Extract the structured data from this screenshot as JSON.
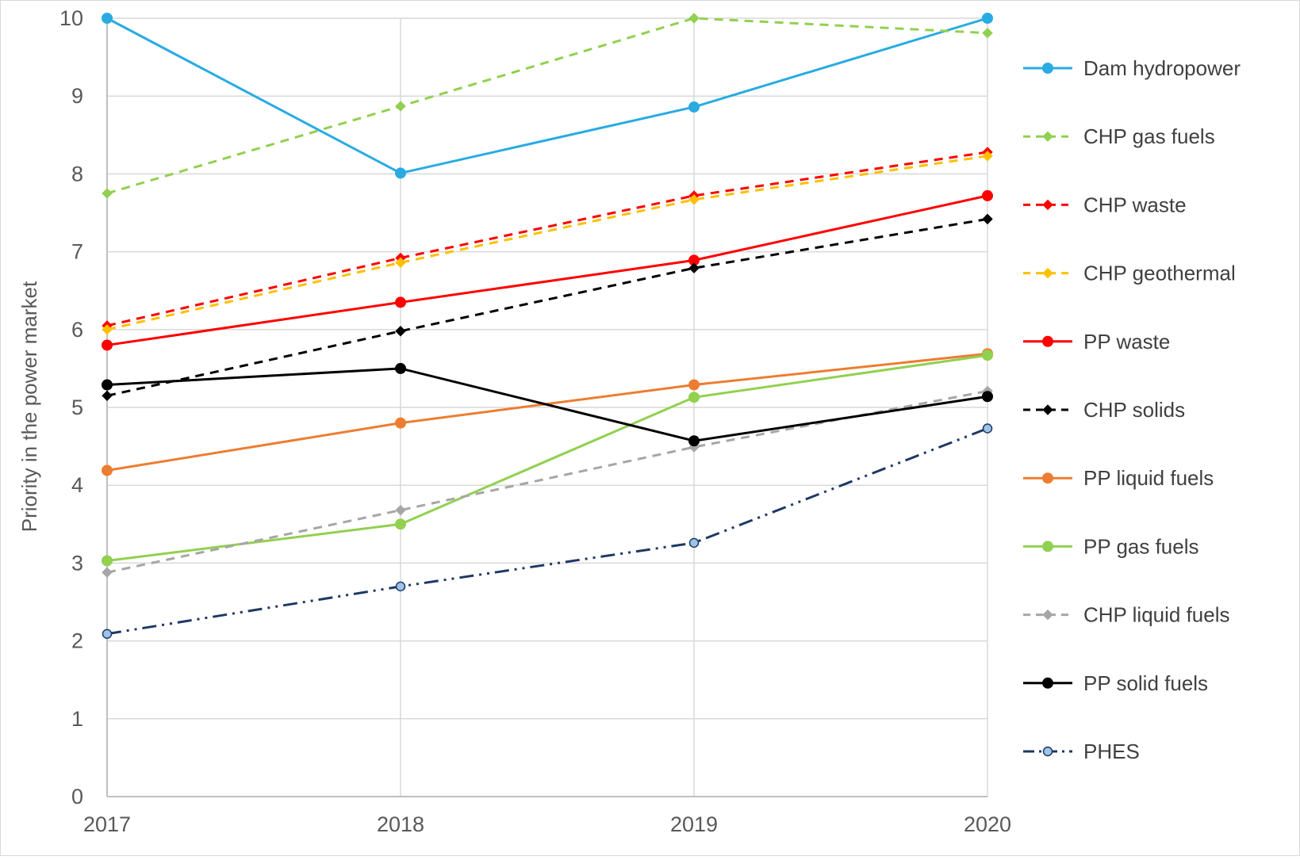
{
  "chart_data": {
    "type": "line",
    "title": "",
    "xlabel": "",
    "ylabel": "Priority in the power market",
    "x": [
      "2017",
      "2018",
      "2019",
      "2020"
    ],
    "ylim": [
      0,
      10
    ],
    "yticks": [
      "0",
      "1",
      "2",
      "3",
      "4",
      "5",
      "6",
      "7",
      "8",
      "9",
      "10"
    ],
    "grid": true,
    "legend_position": "right",
    "series": [
      {
        "name": "Dam hydropower",
        "values": [
          10,
          8.01,
          8.86,
          10
        ],
        "color": "#29abe2",
        "dash": "solid",
        "marker": "circle"
      },
      {
        "name": "CHP gas fuels",
        "values": [
          7.75,
          8.87,
          10,
          9.81
        ],
        "color": "#92d050",
        "dash": "dashed",
        "marker": "diamond"
      },
      {
        "name": "CHP waste",
        "values": [
          6.05,
          6.92,
          7.72,
          8.28
        ],
        "color": "#ff0000",
        "dash": "dashed",
        "marker": "diamond"
      },
      {
        "name": "CHP geothermal",
        "values": [
          6.0,
          6.86,
          7.67,
          8.23
        ],
        "color": "#ffc000",
        "dash": "dashed",
        "marker": "diamond"
      },
      {
        "name": "PP waste",
        "values": [
          5.8,
          6.35,
          6.89,
          7.72
        ],
        "color": "#ff0000",
        "dash": "solid",
        "marker": "circle"
      },
      {
        "name": "CHP solids",
        "values": [
          5.15,
          5.98,
          6.79,
          7.42
        ],
        "color": "#000000",
        "dash": "dashed",
        "marker": "diamond"
      },
      {
        "name": "PP liquid fuels",
        "values": [
          4.19,
          4.8,
          5.29,
          5.69
        ],
        "color": "#ed7d31",
        "dash": "solid",
        "marker": "circle"
      },
      {
        "name": "PP gas fuels",
        "values": [
          3.03,
          3.5,
          5.13,
          5.67
        ],
        "color": "#92d050",
        "dash": "solid",
        "marker": "circle"
      },
      {
        "name": "CHP liquid fuels",
        "values": [
          2.88,
          3.68,
          4.49,
          5.21
        ],
        "color": "#a6a6a6",
        "dash": "dashed",
        "marker": "diamond"
      },
      {
        "name": "PP solid fuels",
        "values": [
          5.29,
          5.5,
          4.57,
          5.14
        ],
        "color": "#000000",
        "dash": "solid",
        "marker": "circle"
      },
      {
        "name": "PHES",
        "values": [
          2.09,
          2.7,
          3.26,
          4.73
        ],
        "color": "#1f3864",
        "dash": "dashdotdot",
        "marker": "circle-light",
        "marker_fill": "#9dc3e6"
      }
    ]
  }
}
